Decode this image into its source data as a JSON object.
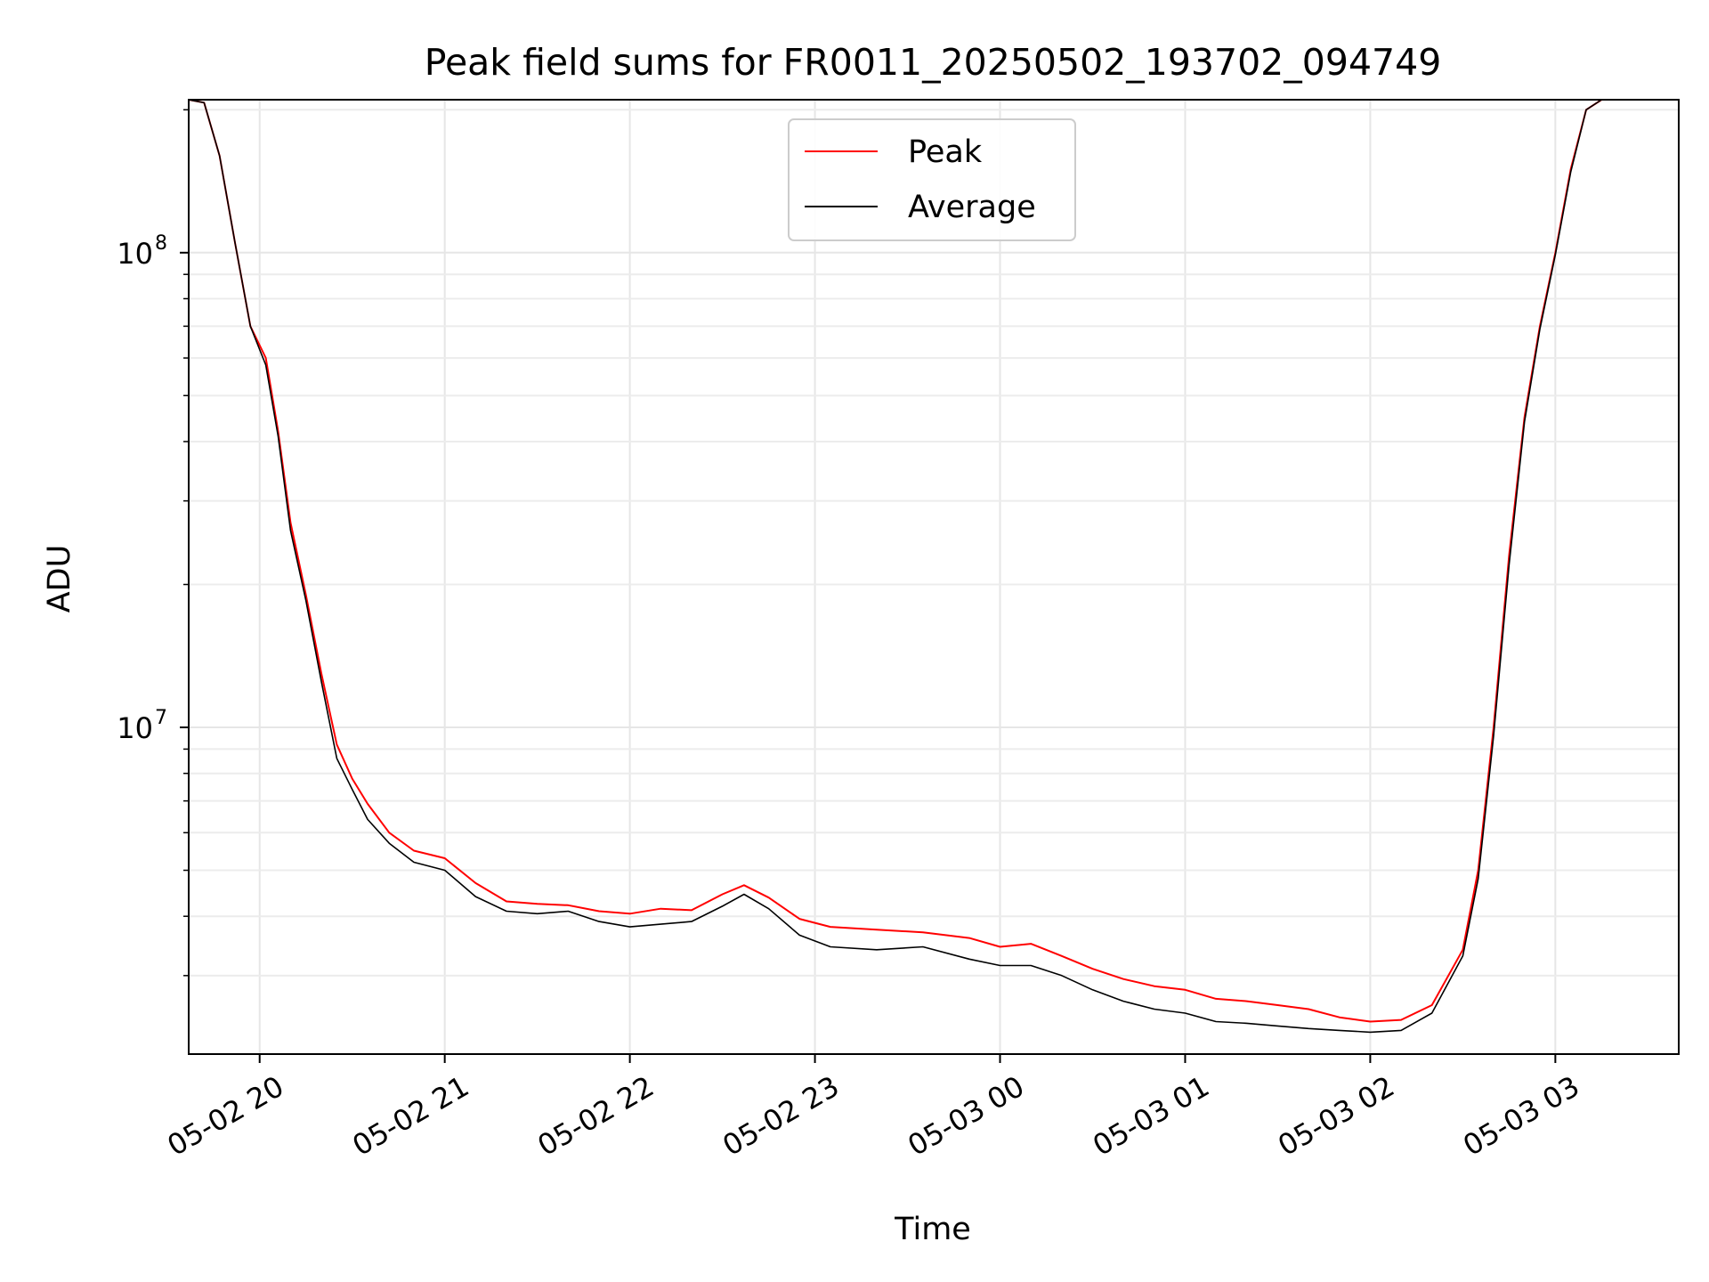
{
  "chart_data": {
    "type": "line",
    "title": "Peak field sums for FR0011_20250502_193702_094749",
    "xlabel": "Time",
    "ylabel": "ADU",
    "y_scale": "log",
    "ylim": [
      2050000,
      210000000
    ],
    "xlim": [
      "2025-05-02 19:37",
      "2025-05-03 03:40"
    ],
    "grid": true,
    "legend": {
      "placement": "upper center",
      "entries": [
        "Peak",
        "Average"
      ]
    },
    "x_ticks": [
      {
        "value": "2025-05-02 20:00",
        "label": "05-02 20"
      },
      {
        "value": "2025-05-02 21:00",
        "label": "05-02 21"
      },
      {
        "value": "2025-05-02 22:00",
        "label": "05-02 22"
      },
      {
        "value": "2025-05-02 23:00",
        "label": "05-02 23"
      },
      {
        "value": "2025-05-03 00:00",
        "label": "05-03 00"
      },
      {
        "value": "2025-05-03 01:00",
        "label": "05-03 01"
      },
      {
        "value": "2025-05-03 02:00",
        "label": "05-03 02"
      },
      {
        "value": "2025-05-03 03:00",
        "label": "05-03 03"
      }
    ],
    "y_ticks": [
      {
        "value": 10000000,
        "label": "10",
        "exp": "7"
      },
      {
        "value": 100000000,
        "label": "10",
        "exp": "8"
      }
    ],
    "x": [
      "2025-05-02 19:37",
      "2025-05-02 19:42",
      "2025-05-02 19:47",
      "2025-05-02 19:52",
      "2025-05-02 19:57",
      "2025-05-02 20:02",
      "2025-05-02 20:06",
      "2025-05-02 20:10",
      "2025-05-02 20:15",
      "2025-05-02 20:20",
      "2025-05-02 20:25",
      "2025-05-02 20:30",
      "2025-05-02 20:35",
      "2025-05-02 20:42",
      "2025-05-02 20:50",
      "2025-05-02 21:00",
      "2025-05-02 21:10",
      "2025-05-02 21:20",
      "2025-05-02 21:30",
      "2025-05-02 21:40",
      "2025-05-02 21:50",
      "2025-05-02 22:00",
      "2025-05-02 22:10",
      "2025-05-02 22:20",
      "2025-05-02 22:30",
      "2025-05-02 22:37",
      "2025-05-02 22:45",
      "2025-05-02 22:55",
      "2025-05-02 23:05",
      "2025-05-02 23:20",
      "2025-05-02 23:35",
      "2025-05-02 23:50",
      "2025-05-03 00:00",
      "2025-05-03 00:10",
      "2025-05-03 00:20",
      "2025-05-03 00:30",
      "2025-05-03 00:40",
      "2025-05-03 00:50",
      "2025-05-03 01:00",
      "2025-05-03 01:10",
      "2025-05-03 01:20",
      "2025-05-03 01:30",
      "2025-05-03 01:40",
      "2025-05-03 01:50",
      "2025-05-03 02:00",
      "2025-05-03 02:10",
      "2025-05-03 02:20",
      "2025-05-03 02:30",
      "2025-05-03 02:35",
      "2025-05-03 02:40",
      "2025-05-03 02:45",
      "2025-05-03 02:50",
      "2025-05-03 02:55",
      "2025-05-03 03:00",
      "2025-05-03 03:05",
      "2025-05-03 03:10",
      "2025-05-03 03:15",
      "2025-05-03 03:20"
    ],
    "series": [
      {
        "name": "Peak",
        "color": "#ff0000",
        "values": [
          210000000,
          207000000,
          160000000,
          105000000,
          70000000,
          60000000,
          42000000,
          27000000,
          19000000,
          13000000,
          9200000,
          7800000,
          6900000,
          6000000,
          5500000,
          5300000,
          4700000,
          4300000,
          4250000,
          4220000,
          4100000,
          4050000,
          4150000,
          4120000,
          4450000,
          4650000,
          4380000,
          3950000,
          3800000,
          3750000,
          3700000,
          3600000,
          3450000,
          3500000,
          3300000,
          3100000,
          2950000,
          2850000,
          2800000,
          2680000,
          2650000,
          2600000,
          2550000,
          2450000,
          2400000,
          2420000,
          2600000,
          3400000,
          5000000,
          10000000,
          23000000,
          45000000,
          70000000,
          100000000,
          150000000,
          200000000,
          210000000,
          210000000
        ]
      },
      {
        "name": "Average",
        "color": "#000000",
        "values": [
          210000000,
          207000000,
          160000000,
          105000000,
          70000000,
          58000000,
          41000000,
          26000000,
          18500000,
          12500000,
          8600000,
          7400000,
          6400000,
          5700000,
          5200000,
          5000000,
          4400000,
          4100000,
          4050000,
          4100000,
          3900000,
          3800000,
          3850000,
          3900000,
          4200000,
          4450000,
          4150000,
          3650000,
          3450000,
          3400000,
          3450000,
          3250000,
          3150000,
          3150000,
          3000000,
          2800000,
          2650000,
          2550000,
          2500000,
          2400000,
          2380000,
          2350000,
          2320000,
          2300000,
          2280000,
          2300000,
          2500000,
          3300000,
          4800000,
          9600000,
          22000000,
          44000000,
          69000000,
          99000000,
          148000000,
          200000000,
          210000000,
          210000000
        ]
      }
    ]
  }
}
